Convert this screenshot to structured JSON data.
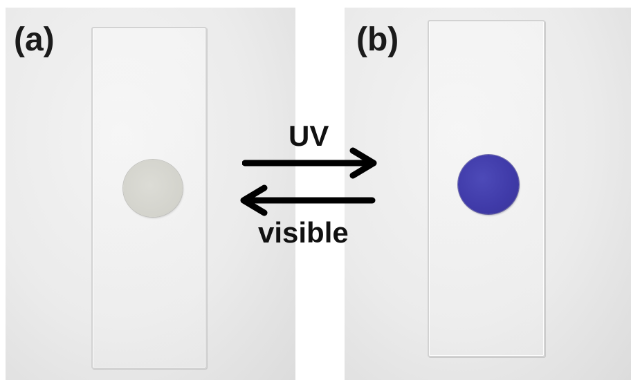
{
  "panels": {
    "a": {
      "label": "(a)",
      "disk_color": "#d6d6cf"
    },
    "b": {
      "label": "(b)",
      "disk_color": "#413ca8"
    }
  },
  "arrows": {
    "forward_label": "UV",
    "reverse_label": "visible",
    "color": "#000000"
  },
  "colors": {
    "background": "#ebebeb",
    "slide_edge": "#d2d2d2"
  }
}
